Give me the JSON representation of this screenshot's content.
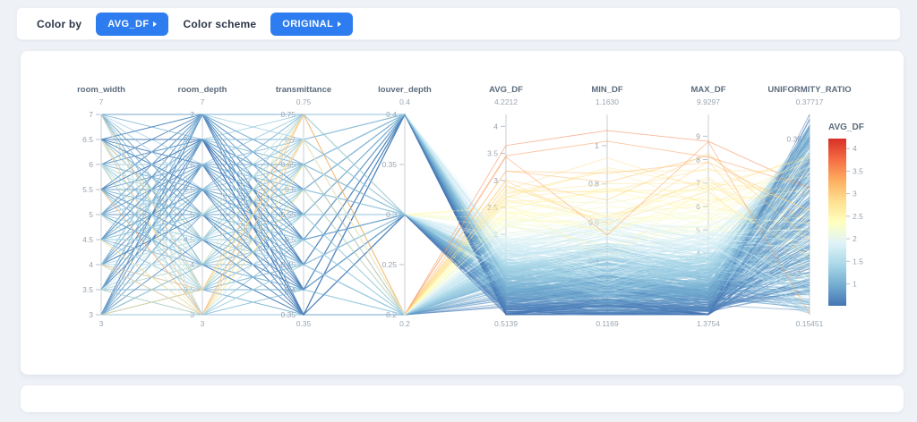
{
  "theme": {
    "accent": "#2e7df0",
    "page_background": "#eef1f6",
    "card_background": "#ffffff"
  },
  "toolbar": {
    "color_by_label": "Color by",
    "color_by_value": "AVG_DF",
    "color_scheme_label": "Color scheme",
    "color_scheme_value": "ORIGINAL"
  },
  "chart_data": {
    "type": "parallel-coordinates",
    "color_by": "AVG_DF",
    "axes": [
      {
        "name": "room_width",
        "min": 3,
        "max": 7,
        "min_label": "3",
        "max_label": "7",
        "ticks": [
          3,
          3.5,
          4,
          4.5,
          5,
          5.5,
          6,
          6.5,
          7
        ],
        "levels": [
          3,
          3.5,
          4,
          4.5,
          5,
          5.5,
          6,
          6.5,
          7
        ]
      },
      {
        "name": "room_depth",
        "min": 3,
        "max": 7,
        "min_label": "3",
        "max_label": "7",
        "ticks": [
          3,
          3.5,
          4,
          4.5,
          5,
          5.5,
          6,
          6.5,
          7
        ],
        "levels": [
          3,
          3.5,
          4,
          4.5,
          5,
          5.5,
          6,
          6.5,
          7
        ]
      },
      {
        "name": "transmittance",
        "min": 0.35,
        "max": 0.75,
        "min_label": "0.35",
        "max_label": "0.75",
        "ticks": [
          0.35,
          0.4,
          0.45,
          0.5,
          0.55,
          0.6,
          0.65,
          0.7,
          0.75
        ],
        "levels": [
          0.35,
          0.4,
          0.45,
          0.5,
          0.55,
          0.6,
          0.65,
          0.7,
          0.75
        ]
      },
      {
        "name": "louver_depth",
        "min": 0.2,
        "max": 0.4,
        "min_label": "0.2",
        "max_label": "0.4",
        "ticks": [
          0.2,
          0.25,
          0.3,
          0.35,
          0.4
        ],
        "levels": [
          0.2,
          0.3,
          0.4
        ]
      },
      {
        "name": "AVG_DF",
        "min": 0.5139,
        "max": 4.2212,
        "min_label": "0.5139",
        "max_label": "4.2212",
        "ticks": [
          1,
          1.5,
          2,
          2.5,
          3,
          3.5,
          4
        ]
      },
      {
        "name": "MIN_DF",
        "min": 0.1169,
        "max": 1.163,
        "min_label": "0.1169",
        "max_label": "1.1630",
        "ticks": [
          0.2,
          0.4,
          0.6,
          0.8,
          1
        ]
      },
      {
        "name": "MAX_DF",
        "min": 1.3754,
        "max": 9.9297,
        "min_label": "1.3754",
        "max_label": "9.9297",
        "ticks": [
          2,
          3,
          4,
          5,
          6,
          7,
          8,
          9
        ]
      },
      {
        "name": "UNIFORMITY_RATIO",
        "min": 0.15451,
        "max": 0.37717,
        "min_label": "0.15451",
        "max_label": "0.37717",
        "ticks": [
          0.2,
          0.25,
          0.3,
          0.35
        ]
      }
    ],
    "color_scale": {
      "domain": [
        0.5139,
        4.2212
      ],
      "stops": [
        "#4575b4",
        "#74add1",
        "#abd9e9",
        "#e0f3f8",
        "#ffffbf",
        "#fee090",
        "#fdae61",
        "#f46d43",
        "#d73027"
      ]
    },
    "legend": {
      "title": "AVG_DF",
      "ticks": [
        4,
        3.5,
        3,
        2.5,
        2,
        1.5,
        1
      ]
    },
    "samples": {
      "count": 430,
      "seed": 11
    }
  }
}
